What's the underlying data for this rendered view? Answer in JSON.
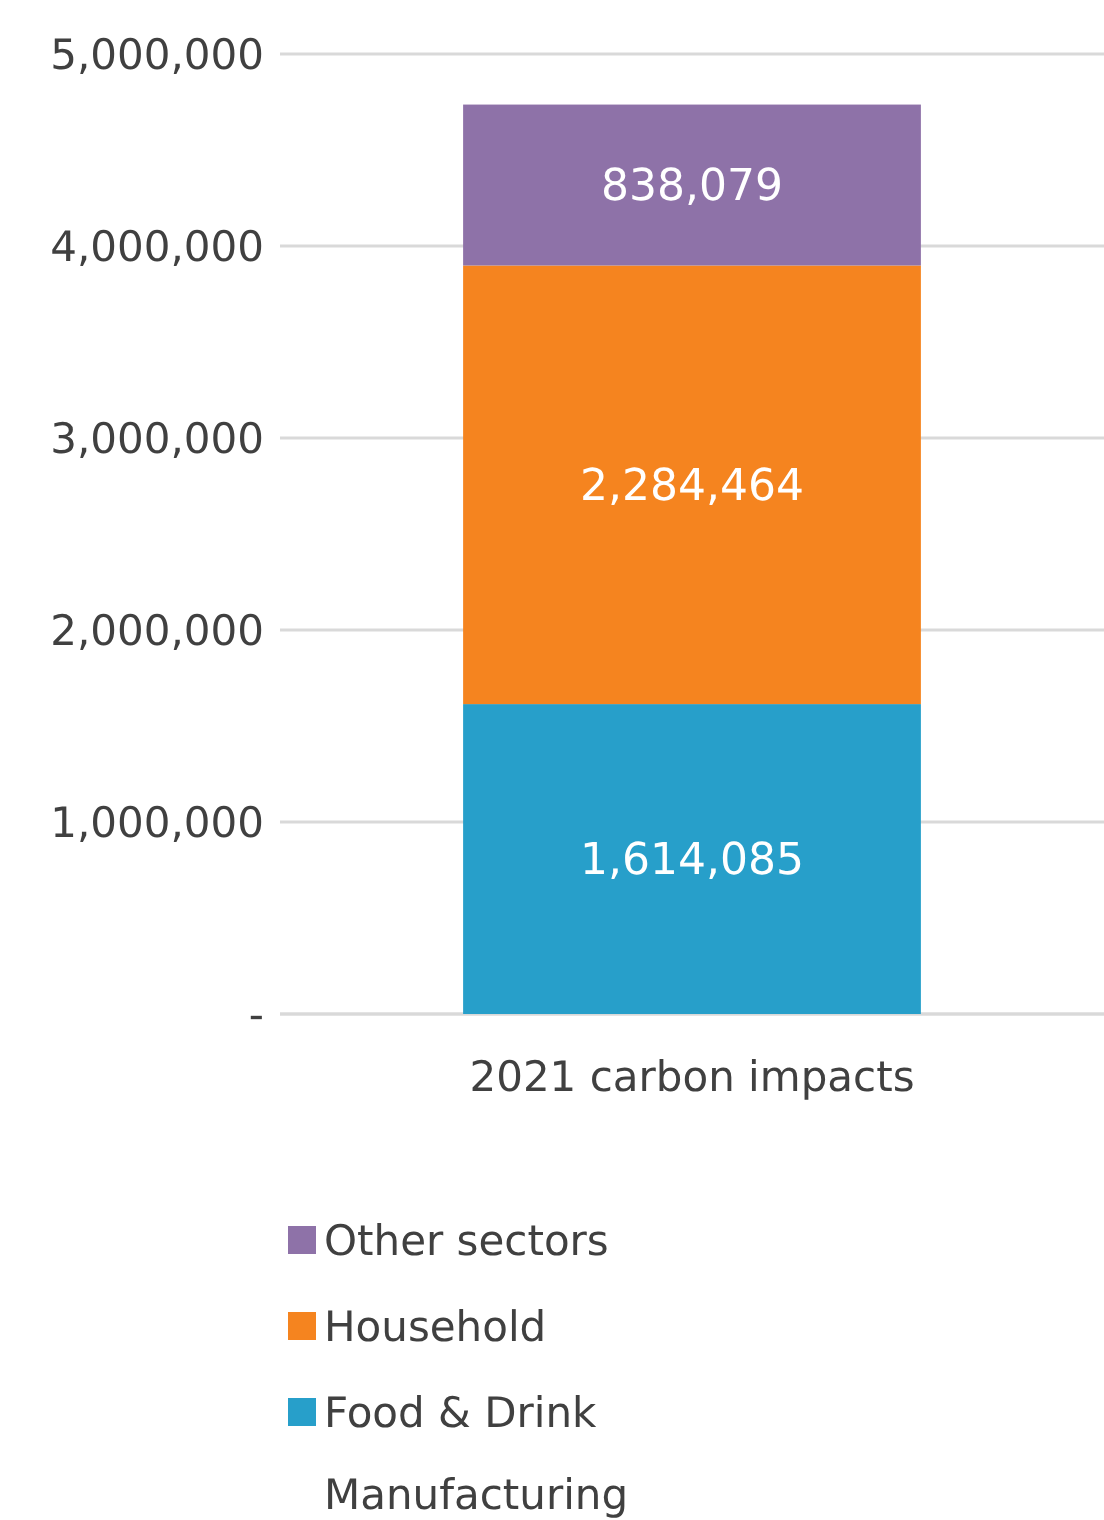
{
  "chart_data": {
    "type": "bar",
    "stacked": true,
    "categories": [
      "2021 carbon impacts"
    ],
    "series": [
      {
        "name": "Food & Drink Manufacturing",
        "color": "#279fca",
        "values": [
          1614085
        ],
        "value_labels": [
          "1,614,085"
        ]
      },
      {
        "name": "Household",
        "color": "#f5841f",
        "values": [
          2284464
        ],
        "value_labels": [
          "2,284,464"
        ]
      },
      {
        "name": "Other sectors",
        "color": "#8e72a8",
        "values": [
          838079
        ],
        "value_labels": [
          "838,079"
        ]
      }
    ],
    "ylim": [
      0,
      5000000
    ],
    "yticks": [
      {
        "value": 0,
        "label": "-"
      },
      {
        "value": 1000000,
        "label": "1,000,000"
      },
      {
        "value": 2000000,
        "label": "2,000,000"
      },
      {
        "value": 3000000,
        "label": "3,000,000"
      },
      {
        "value": 4000000,
        "label": "4,000,000"
      },
      {
        "value": 5000000,
        "label": "5,000,000"
      }
    ],
    "grid": "y",
    "legend": "bottom"
  }
}
